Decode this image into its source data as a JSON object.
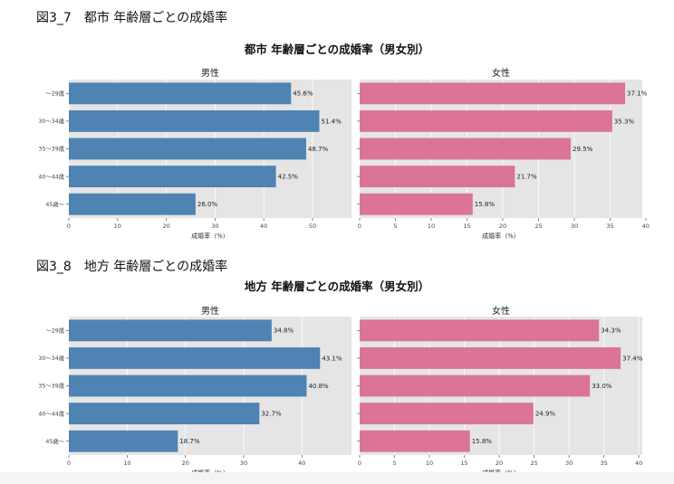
{
  "figures": [
    {
      "label": "図3_7　都市 年齢層ごとの成婚率"
    },
    {
      "label": "図3_8　地方 年齢層ごとの成婚率"
    }
  ],
  "colors": {
    "male": "#4f83b3",
    "female": "#db7498",
    "panel_bg": "#e5e5e5",
    "grid": "#ffffff"
  },
  "chart_data": [
    {
      "type": "bar",
      "orientation": "horizontal",
      "title": "都市 年齢層ごとの成婚率（男女別）",
      "categories": [
        "〜29歳",
        "30〜34歳",
        "35〜39歳",
        "40〜44歳",
        "45歳〜"
      ],
      "grid": true,
      "panels": [
        {
          "title": "男性",
          "xlabel": "成婚率（%）",
          "xlim": [
            0,
            58
          ],
          "xticks": [
            0,
            10,
            20,
            30,
            40,
            50
          ],
          "series": [
            {
              "values": [
                45.6,
                51.4,
                48.7,
                42.5,
                26.0
              ],
              "labels": [
                "45.6%",
                "51.4%",
                "48.7%",
                "42.5%",
                "26.0%"
              ]
            }
          ]
        },
        {
          "title": "女性",
          "xlabel": "成婚率（%）",
          "xlim": [
            0,
            39.5
          ],
          "xticks": [
            0,
            5,
            10,
            15,
            20,
            25,
            30,
            35,
            40
          ],
          "series": [
            {
              "values": [
                37.1,
                35.3,
                29.5,
                21.7,
                15.8
              ],
              "labels": [
                "37.1%",
                "35.3%",
                "29.5%",
                "21.7%",
                "15.8%"
              ]
            }
          ]
        }
      ]
    },
    {
      "type": "bar",
      "orientation": "horizontal",
      "title": "地方 年齢層ごとの成婚率（男女別）",
      "categories": [
        "〜29歳",
        "30〜34歳",
        "35〜39歳",
        "40〜44歳",
        "45歳〜"
      ],
      "grid": true,
      "panels": [
        {
          "title": "男性",
          "xlabel": "成婚率（%）",
          "xlim": [
            0,
            48.5
          ],
          "xticks": [
            0,
            10,
            20,
            30,
            40
          ],
          "series": [
            {
              "values": [
                34.8,
                43.1,
                40.8,
                32.7,
                18.7
              ],
              "labels": [
                "34.8%",
                "43.1%",
                "40.8%",
                "32.7%",
                "18.7%"
              ]
            }
          ]
        },
        {
          "title": "女性",
          "xlabel": "成婚率（%）",
          "xlim": [
            0,
            40.5
          ],
          "xticks": [
            0,
            5,
            10,
            15,
            20,
            25,
            30,
            35,
            40
          ],
          "series": [
            {
              "values": [
                34.3,
                37.4,
                33.0,
                24.9,
                15.8
              ],
              "labels": [
                "34.3%",
                "37.4%",
                "33.0%",
                "24.9%",
                "15.8%"
              ]
            }
          ]
        }
      ]
    }
  ]
}
